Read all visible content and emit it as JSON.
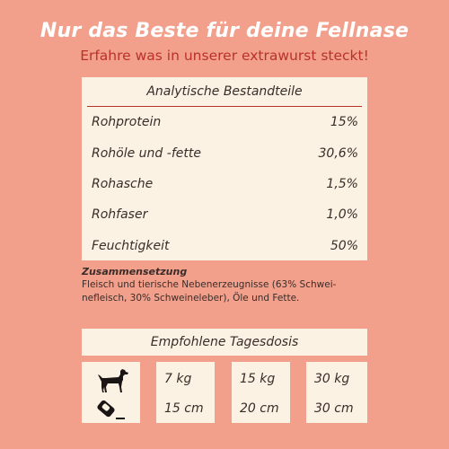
{
  "header": {
    "title": "Nur das Beste für deine Fellnase",
    "subtitle": "Erfahre was in unserer extrawurst steckt!"
  },
  "analysis": {
    "heading": "Analytische Bestandteile",
    "rows": [
      {
        "label": "Rohprotein",
        "value": "15%"
      },
      {
        "label": "Rohöle und -fette",
        "value": "30,6%"
      },
      {
        "label": "Rohasche",
        "value": "1,5%"
      },
      {
        "label": "Rohfaser",
        "value": "1,0%"
      },
      {
        "label": "Feuchtigkeit",
        "value": "50%"
      }
    ]
  },
  "composition": {
    "heading": "Zusammensetzung",
    "line1": "Fleisch und tierische Nebenerzeugnisse (63% Schwei-",
    "line2": "nefleisch, 30% Schweineleber), Öle und Fette."
  },
  "dosage": {
    "heading": "Empfohlene Tagesdosis",
    "icons": [
      "dog-icon",
      "sausage-icon"
    ],
    "columns": [
      {
        "weight": "7 kg",
        "length": "15 cm"
      },
      {
        "weight": "15 kg",
        "length": "20 cm"
      },
      {
        "weight": "30 kg",
        "length": "30 cm"
      }
    ]
  },
  "colors": {
    "background": "#f2a08c",
    "card": "#fbf2e4",
    "accent": "#b8322a",
    "text": "#3a2c28"
  }
}
